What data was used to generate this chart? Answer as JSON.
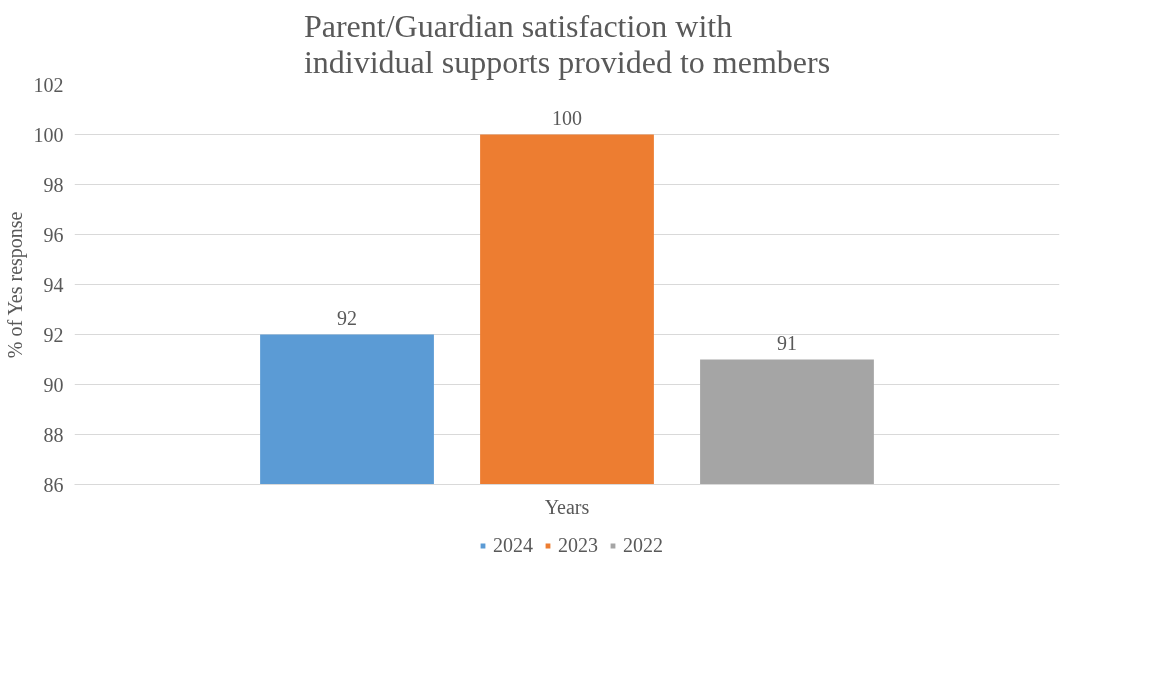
{
  "chart_data": {
    "type": "bar",
    "title": "Parent/Guardian satisfaction with individual supports provided to members",
    "ylabel": "% of Yes response",
    "categories": [
      "Years"
    ],
    "series": [
      {
        "name": "2024",
        "color": "#5b9bd5",
        "values": [
          92
        ]
      },
      {
        "name": "2023",
        "color": "#ed7d31",
        "values": [
          100
        ]
      },
      {
        "name": "2022",
        "color": "#a5a5a5",
        "values": [
          91
        ]
      }
    ],
    "ylim": [
      86,
      102
    ],
    "yticks": [
      86,
      88,
      90,
      92,
      94,
      96,
      98,
      100,
      102
    ],
    "grid": "y",
    "legend": "bottom",
    "data_labels": true
  }
}
